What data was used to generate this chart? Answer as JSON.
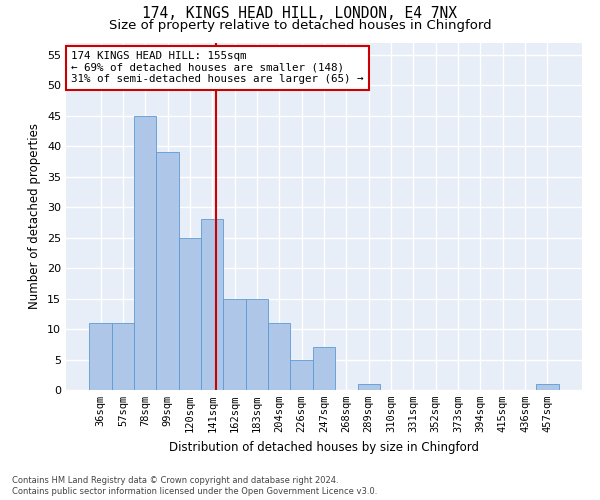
{
  "title": "174, KINGS HEAD HILL, LONDON, E4 7NX",
  "subtitle": "Size of property relative to detached houses in Chingford",
  "xlabel": "Distribution of detached houses by size in Chingford",
  "ylabel": "Number of detached properties",
  "categories": [
    "36sqm",
    "57sqm",
    "78sqm",
    "99sqm",
    "120sqm",
    "141sqm",
    "162sqm",
    "183sqm",
    "204sqm",
    "226sqm",
    "247sqm",
    "268sqm",
    "289sqm",
    "310sqm",
    "331sqm",
    "352sqm",
    "373sqm",
    "394sqm",
    "415sqm",
    "436sqm",
    "457sqm"
  ],
  "values": [
    11,
    11,
    45,
    39,
    25,
    28,
    15,
    15,
    11,
    5,
    7,
    0,
    1,
    0,
    0,
    0,
    0,
    0,
    0,
    0,
    1
  ],
  "bar_color": "#aec6e8",
  "bar_edge_color": "#5b9bd5",
  "vline_color": "#cc0000",
  "vline_x_index": 5.67,
  "annotation_text": "174 KINGS HEAD HILL: 155sqm\n← 69% of detached houses are smaller (148)\n31% of semi-detached houses are larger (65) →",
  "annotation_box_color": "white",
  "annotation_box_edge_color": "#cc0000",
  "ylim_max": 57,
  "yticks": [
    0,
    5,
    10,
    15,
    20,
    25,
    30,
    35,
    40,
    45,
    50,
    55
  ],
  "footnote_line1": "Contains HM Land Registry data © Crown copyright and database right 2024.",
  "footnote_line2": "Contains public sector information licensed under the Open Government Licence v3.0.",
  "bg_color": "#e8eef8",
  "grid_color": "white"
}
